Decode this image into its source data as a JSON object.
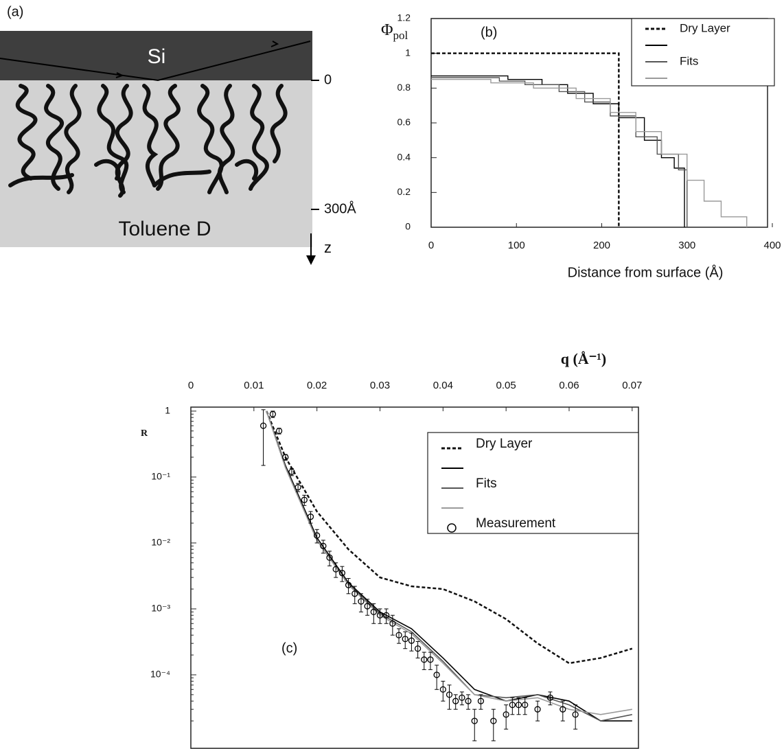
{
  "diagram": {
    "label": "(a)",
    "top_layer": "Si",
    "bottom_layer": "Toluene D",
    "depth_start": "0",
    "depth_end": "300Å",
    "axis": "z"
  },
  "chart_data": [
    {
      "type": "line",
      "annotation": "(b)",
      "ylabel": "Φ",
      "ylabel_sub": "pol",
      "xlabel": "Distance from surface (Å)",
      "xlim": [
        0,
        400
      ],
      "ylim": [
        0,
        1.2
      ],
      "xticks": [
        0,
        100,
        200,
        300,
        400
      ],
      "yticks": [
        0,
        0.2,
        0.4,
        0.6,
        0.8,
        1,
        1.2
      ],
      "legend": "top-right",
      "series": [
        {
          "name": "Dry Layer",
          "color": "#111111",
          "dash": true,
          "x": [
            0,
            220,
            220
          ],
          "values": [
            1,
            1,
            0
          ]
        },
        {
          "name": null,
          "color": "#000000",
          "x": [
            0,
            90,
            90,
            130,
            130,
            160,
            160,
            190,
            190,
            220,
            220,
            250,
            250,
            270,
            270,
            285,
            285,
            297,
            297
          ],
          "values": [
            0.87,
            0.87,
            0.85,
            0.85,
            0.82,
            0.82,
            0.77,
            0.77,
            0.71,
            0.71,
            0.63,
            0.63,
            0.5,
            0.5,
            0.4,
            0.4,
            0.34,
            0.34,
            0
          ]
        },
        {
          "name": "Fits",
          "color": "#555555",
          "x": [
            0,
            80,
            80,
            110,
            110,
            150,
            150,
            180,
            180,
            210,
            210,
            240,
            240,
            265,
            265,
            290,
            290,
            300,
            300
          ],
          "values": [
            0.86,
            0.86,
            0.84,
            0.84,
            0.82,
            0.82,
            0.78,
            0.78,
            0.72,
            0.72,
            0.64,
            0.64,
            0.52,
            0.52,
            0.42,
            0.42,
            0.33,
            0.33,
            0
          ]
        },
        {
          "name": null,
          "color": "#9a9a9a",
          "x": [
            0,
            70,
            70,
            120,
            120,
            170,
            170,
            210,
            210,
            240,
            240,
            270,
            270,
            300,
            300,
            320,
            320,
            340,
            340,
            370,
            370
          ],
          "values": [
            0.85,
            0.85,
            0.83,
            0.83,
            0.8,
            0.8,
            0.74,
            0.74,
            0.66,
            0.66,
            0.55,
            0.55,
            0.42,
            0.42,
            0.27,
            0.27,
            0.15,
            0.15,
            0.06,
            0.06,
            0
          ]
        }
      ]
    },
    {
      "type": "line",
      "annotation": "(c)",
      "ylabel": "R",
      "xlabel": "q (Å⁻¹)",
      "ylog": true,
      "xlim": [
        0,
        0.071
      ],
      "ylim": [
        1e-05,
        1.15
      ],
      "xticks": [
        0,
        0.01,
        0.02,
        0.03,
        0.04,
        0.05,
        0.06,
        0.07
      ],
      "yticks": [
        1,
        {
          "value": 0.1,
          "label": "10⁻¹"
        },
        {
          "value": 0.01,
          "label": "10⁻²"
        },
        {
          "value": 0.001,
          "label": "10⁻³"
        },
        {
          "value": 0.0001,
          "label": "10⁻⁴"
        }
      ],
      "legend": "top-right",
      "series": [
        {
          "name": "Dry Layer",
          "color": "#111111",
          "dash": true,
          "x": [
            0.012,
            0.015,
            0.02,
            0.025,
            0.03,
            0.035,
            0.04,
            0.045,
            0.05,
            0.055,
            0.06,
            0.065,
            0.07
          ],
          "values": [
            1,
            0.2,
            0.03,
            0.008,
            0.003,
            0.0022,
            0.002,
            0.0013,
            0.0007,
            0.0003,
            0.00015,
            0.00018,
            0.00025
          ]
        },
        {
          "name": null,
          "color": "#000000",
          "x": [
            0.012,
            0.015,
            0.02,
            0.025,
            0.03,
            0.035,
            0.04,
            0.045,
            0.05,
            0.055,
            0.06,
            0.065,
            0.07
          ],
          "values": [
            1,
            0.15,
            0.012,
            0.0025,
            0.0009,
            0.0005,
            0.00018,
            6e-05,
            4e-05,
            5e-05,
            4e-05,
            2e-05,
            2e-05
          ]
        },
        {
          "name": "Fits",
          "color": "#555555",
          "x": [
            0.012,
            0.015,
            0.02,
            0.025,
            0.03,
            0.035,
            0.04,
            0.045,
            0.05,
            0.055,
            0.06,
            0.065,
            0.07
          ],
          "values": [
            1,
            0.14,
            0.011,
            0.0024,
            0.00085,
            0.00045,
            0.00016,
            5e-05,
            4.5e-05,
            5e-05,
            3.5e-05,
            2e-05,
            2.5e-05
          ]
        },
        {
          "name": null,
          "color": "#9a9a9a",
          "x": [
            0.012,
            0.015,
            0.02,
            0.025,
            0.03,
            0.035,
            0.04,
            0.045,
            0.05,
            0.055,
            0.06,
            0.065,
            0.07
          ],
          "values": [
            1,
            0.14,
            0.011,
            0.0023,
            0.0008,
            0.00042,
            0.00015,
            5e-05,
            4e-05,
            4.5e-05,
            3e-05,
            2.5e-05,
            3e-05
          ]
        },
        {
          "name": "Measurement",
          "color": "#000000",
          "marker": "circle",
          "x": [
            0.0115,
            0.013,
            0.014,
            0.015,
            0.016,
            0.017,
            0.018,
            0.019,
            0.02,
            0.021,
            0.022,
            0.023,
            0.024,
            0.025,
            0.026,
            0.027,
            0.028,
            0.029,
            0.03,
            0.031,
            0.032,
            0.033,
            0.034,
            0.035,
            0.036,
            0.037,
            0.038,
            0.039,
            0.04,
            0.041,
            0.042,
            0.043,
            0.044,
            0.045,
            0.046,
            0.048,
            0.05,
            0.051,
            0.052,
            0.053,
            0.055,
            0.057,
            0.059,
            0.061
          ],
          "values": [
            0.6,
            0.9,
            0.5,
            0.2,
            0.12,
            0.07,
            0.045,
            0.025,
            0.013,
            0.009,
            0.006,
            0.004,
            0.0035,
            0.0023,
            0.0017,
            0.0013,
            0.0011,
            0.0009,
            0.0008,
            0.0008,
            0.0006,
            0.0004,
            0.00035,
            0.00033,
            0.00025,
            0.00017,
            0.00017,
            0.0001,
            6e-05,
            5e-05,
            4e-05,
            4.5e-05,
            4e-05,
            2e-05,
            4e-05,
            2e-05,
            2.5e-05,
            3.5e-05,
            3.5e-05,
            3.5e-05,
            3e-05,
            4.5e-05,
            3e-05,
            2.5e-05
          ],
          "errors": [
            0.45,
            0.1,
            0.05,
            0.02,
            0.015,
            0.01,
            0.008,
            0.005,
            0.003,
            0.002,
            0.0015,
            0.001,
            0.0009,
            0.0006,
            0.0005,
            0.0004,
            0.0003,
            0.0003,
            0.0002,
            0.0002,
            0.0002,
            0.0001,
            0.0001,
            0.0001,
            7e-05,
            5e-05,
            5e-05,
            4e-05,
            2e-05,
            2e-05,
            1e-05,
            1e-05,
            1e-05,
            1e-05,
            1e-05,
            1e-05,
            1e-05,
            1e-05,
            1e-05,
            1e-05,
            1e-05,
            1e-05,
            1e-05,
            1e-05
          ]
        }
      ]
    }
  ]
}
